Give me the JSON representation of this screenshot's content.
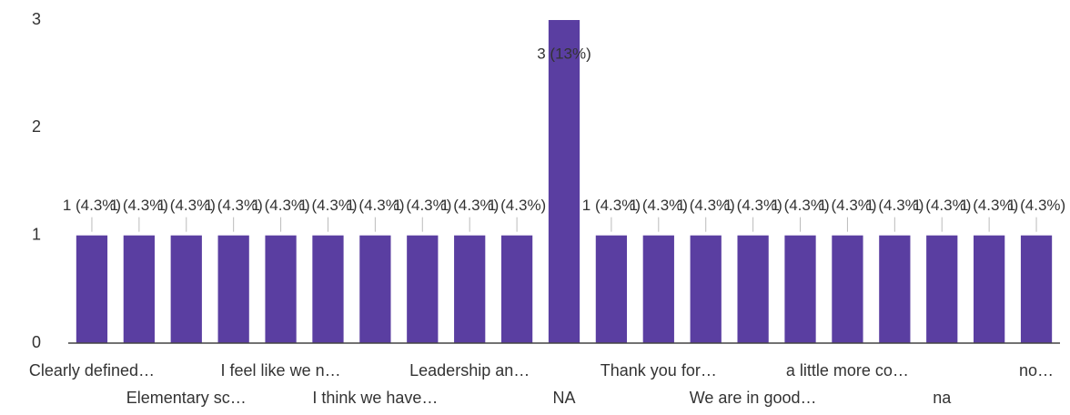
{
  "chart_data": {
    "type": "bar",
    "categories": [
      "Clearly defined…",
      null,
      "Elementary sc…",
      null,
      "I feel like we n…",
      null,
      "I think we have…",
      null,
      "Leadership an…",
      null,
      "NA",
      null,
      "Thank you for…",
      null,
      "We are in good…",
      null,
      "a little more co…",
      null,
      "na",
      null,
      "no…"
    ],
    "values": [
      1,
      1,
      1,
      1,
      1,
      1,
      1,
      1,
      1,
      1,
      3,
      1,
      1,
      1,
      1,
      1,
      1,
      1,
      1,
      1,
      1
    ],
    "value_labels": [
      "1 (4.3%)",
      "1 (4.3%)",
      "1 (4.3%)",
      "1 (4.3%)",
      "1 (4.3%)",
      "1 (4.3%)",
      "1 (4.3%)",
      "1 (4.3%)",
      "1 (4.3%)",
      "1 (4.3%)",
      "3 (13%)",
      "1 (4.3%)",
      "1 (4.3%)",
      "1 (4.3%)",
      "1 (4.3%)",
      "1 (4.3%)",
      "1 (4.3%)",
      "1 (4.3%)",
      "1 (4.3%)",
      "1 (4.3%)",
      "1 (4.3%)"
    ],
    "color": "#5a3ea1",
    "ylim": [
      0,
      3
    ],
    "yticks": [
      0,
      1,
      2,
      3
    ],
    "grid": false
  }
}
